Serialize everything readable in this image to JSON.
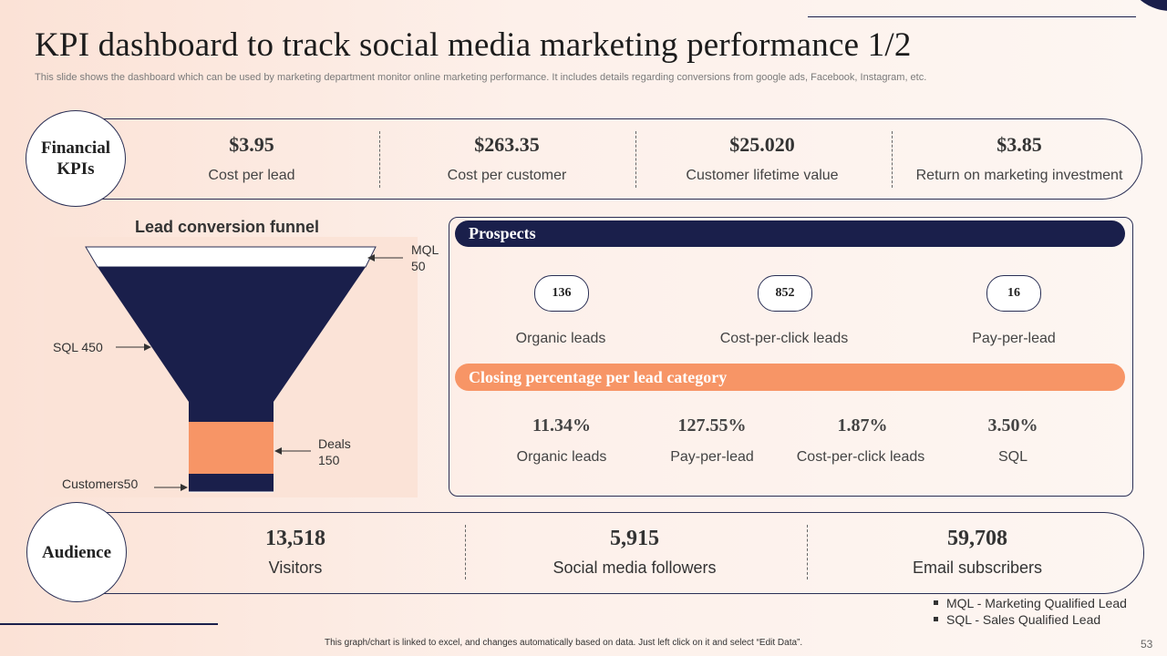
{
  "title": "KPI dashboard to track social media marketing performance 1/2",
  "subtitle": "This slide shows the dashboard which can be used by marketing department monitor online marketing performance. It includes details regarding conversions from google ads, Facebook, Instagram, etc.",
  "financial": {
    "label_line1": "Financial",
    "label_line2": "KPIs",
    "kpis": [
      {
        "value": "$3.95",
        "label": "Cost per lead"
      },
      {
        "value": "$263.35",
        "label": "Cost per customer"
      },
      {
        "value": "$25.020",
        "label": "Customer lifetime value"
      },
      {
        "value": "$3.85",
        "label": "Return on marketing investment"
      }
    ]
  },
  "funnel": {
    "title": "Lead conversion funnel",
    "mql_label": "MQL",
    "mql_value": "50",
    "sql_label": "SQL 450",
    "deals_label": "Deals",
    "deals_value": "150",
    "customers_label": "Customers50"
  },
  "prospects": {
    "header": "Prospects",
    "items": [
      {
        "value": "136",
        "label": "Organic leads"
      },
      {
        "value": "852",
        "label": "Cost-per-click leads"
      },
      {
        "value": "16",
        "label": "Pay-per-lead"
      }
    ]
  },
  "closing": {
    "header": "Closing percentage per lead category",
    "items": [
      {
        "value": "11.34%",
        "label": "Organic leads"
      },
      {
        "value": "127.55%",
        "label": "Pay-per-lead"
      },
      {
        "value": "1.87%",
        "label": "Cost-per-click leads"
      },
      {
        "value": "3.50%",
        "label": "SQL"
      }
    ]
  },
  "audience": {
    "label": "Audience",
    "items": [
      {
        "value": "13,518",
        "label": "Visitors"
      },
      {
        "value": "5,915",
        "label": "Social media followers"
      },
      {
        "value": "59,708",
        "label": "Email subscribers"
      }
    ]
  },
  "legend": [
    "MQL - Marketing Qualified Lead",
    "SQL - Sales Qualified Lead"
  ],
  "footnote": "This graph/chart is linked to excel, and changes automatically based on data. Just left click on it and select “Edit Data”.",
  "page_number": "53",
  "colors": {
    "navy": "#1a1f4b",
    "orange": "#f79566",
    "peach_bg": "#fbe3d7"
  }
}
